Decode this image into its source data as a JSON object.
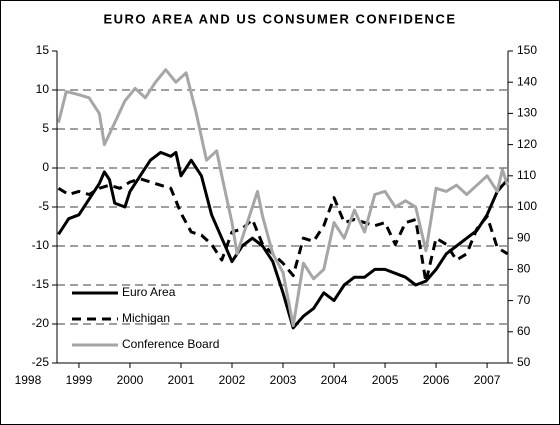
{
  "chart_data": {
    "type": "line",
    "title": "EURO AREA AND US CONSUMER CONFIDENCE",
    "xlim": [
      1998.57,
      2007.41
    ],
    "xticks": [
      1998,
      1999,
      2000,
      2001,
      2002,
      2003,
      2004,
      2005,
      2006,
      2007
    ],
    "ylim": [
      -25,
      15
    ],
    "yticks": [
      -25,
      -20,
      -15,
      -10,
      -5,
      0,
      5,
      10,
      15
    ],
    "y2lim": [
      50,
      150
    ],
    "y2ticks": [
      50,
      60,
      70,
      80,
      90,
      100,
      110,
      120,
      130,
      140,
      150
    ],
    "grid": true,
    "legend": "lower left",
    "series": [
      {
        "name": "Euro Area",
        "color": "#000000",
        "style": "solid",
        "x": [
          1998.6,
          1998.8,
          1999.0,
          1999.2,
          1999.4,
          1999.5,
          1999.6,
          1999.7,
          1999.9,
          2000.0,
          2000.2,
          2000.4,
          2000.6,
          2000.8,
          2000.9,
          2001.0,
          2001.2,
          2001.4,
          2001.6,
          2001.8,
          2002.0,
          2002.2,
          2002.4,
          2002.6,
          2002.8,
          2003.0,
          2003.2,
          2003.4,
          2003.6,
          2003.8,
          2004.0,
          2004.2,
          2004.4,
          2004.6,
          2004.8,
          2005.0,
          2005.2,
          2005.4,
          2005.6,
          2005.8,
          2006.0,
          2006.2,
          2006.4,
          2006.6,
          2006.8,
          2007.0,
          2007.2,
          2007.4
        ],
        "values": [
          -8.5,
          -6.5,
          -6,
          -4,
          -2,
          -0.5,
          -1.5,
          -4.5,
          -5,
          -3,
          -1,
          1,
          2,
          1.5,
          2,
          -1,
          1,
          -1,
          -6,
          -9,
          -12,
          -10,
          -9,
          -10,
          -12,
          -16,
          -20.5,
          -19,
          -18,
          -16,
          -17,
          -15,
          -14,
          -14,
          -13,
          -13,
          -13.5,
          -14,
          -15,
          -14.5,
          -13,
          -11,
          -10,
          -9,
          -8,
          -6,
          -3,
          -1.5
        ]
      },
      {
        "name": "Michigan",
        "color": "#000000",
        "style": "dashed",
        "axis": "y2",
        "x": [
          1998.6,
          1998.8,
          1999.0,
          1999.2,
          1999.4,
          1999.6,
          1999.8,
          2000.0,
          2000.2,
          2000.4,
          2000.6,
          2000.8,
          2001.0,
          2001.2,
          2001.4,
          2001.6,
          2001.8,
          2002.0,
          2002.2,
          2002.4,
          2002.6,
          2002.8,
          2003.0,
          2003.2,
          2003.4,
          2003.6,
          2003.8,
          2004.0,
          2004.2,
          2004.4,
          2004.6,
          2004.8,
          2005.0,
          2005.2,
          2005.4,
          2005.6,
          2005.8,
          2006.0,
          2006.2,
          2006.4,
          2006.6,
          2006.8,
          2007.0,
          2007.2,
          2007.4
        ],
        "values": [
          106,
          104,
          105,
          104,
          106,
          107,
          106,
          108,
          109,
          108,
          107,
          106,
          98,
          92,
          91,
          88,
          83,
          92,
          93,
          96,
          88,
          85,
          82,
          78,
          90,
          89,
          94,
          103,
          95,
          96,
          95,
          94,
          95,
          88,
          95,
          96,
          76,
          90,
          88,
          83,
          85,
          93,
          97,
          87,
          85
        ]
      },
      {
        "name": "Conference Board",
        "color": "#a6a6a6",
        "style": "solid",
        "axis": "y2",
        "x": [
          1998.6,
          1998.75,
          1999.0,
          1999.2,
          1999.4,
          1999.5,
          1999.7,
          1999.9,
          2000.1,
          2000.3,
          2000.5,
          2000.7,
          2000.9,
          2001.1,
          2001.3,
          2001.5,
          2001.7,
          2001.8,
          2002.0,
          2002.1,
          2002.3,
          2002.5,
          2002.6,
          2002.8,
          2003.0,
          2003.2,
          2003.4,
          2003.6,
          2003.8,
          2004.0,
          2004.2,
          2004.4,
          2004.6,
          2004.8,
          2005.0,
          2005.2,
          2005.4,
          2005.6,
          2005.8,
          2006.0,
          2006.2,
          2006.4,
          2006.6,
          2006.8,
          2007.0,
          2007.2,
          2007.3,
          2007.4
        ],
        "values": [
          127,
          137,
          136,
          135,
          130,
          120,
          127,
          134,
          138,
          135,
          140,
          144,
          140,
          143,
          130,
          115,
          118,
          110,
          95,
          85,
          95,
          105,
          97,
          85,
          79,
          62,
          82,
          77,
          80,
          95,
          90,
          99,
          92,
          104,
          105,
          100,
          102,
          100,
          86,
          106,
          105,
          107,
          104,
          107,
          110,
          105,
          112,
          107
        ]
      }
    ]
  }
}
